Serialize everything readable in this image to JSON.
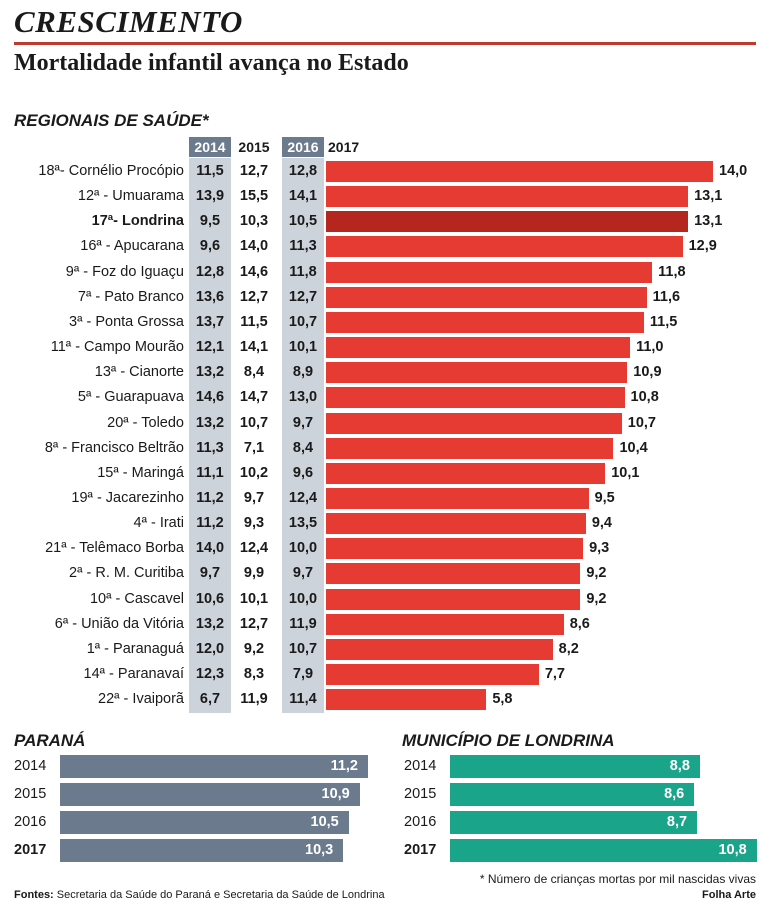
{
  "header": {
    "kicker": "CRESCIMENTO",
    "headline": "Mortalidade infantil avança no Estado"
  },
  "colors": {
    "bars": "#e63b32",
    "highlight": "#b5261e",
    "parana": "#6b7a8c",
    "londrina": "#1aa58a"
  },
  "chart_data": [
    {
      "type": "bar",
      "title": "REGIONAIS DE SAÚDE*",
      "columns": [
        "2014",
        "2015",
        "2016",
        "2017"
      ],
      "highlight": "17ª- Londrina",
      "rows": [
        {
          "label": "18ª- Cornélio Procópio",
          "v2014": "11,5",
          "v2015": "12,7",
          "v2016": "12,8",
          "v2017": 14.0,
          "label2017": "14,0"
        },
        {
          "label": "12ª - Umuarama",
          "v2014": "13,9",
          "v2015": "15,5",
          "v2016": "14,1",
          "v2017": 13.1,
          "label2017": "13,1"
        },
        {
          "label": "17ª- Londrina",
          "v2014": "9,5",
          "v2015": "10,3",
          "v2016": "10,5",
          "v2017": 13.1,
          "label2017": "13,1"
        },
        {
          "label": "16ª - Apucarana",
          "v2014": "9,6",
          "v2015": "14,0",
          "v2016": "11,3",
          "v2017": 12.9,
          "label2017": "12,9"
        },
        {
          "label": "9ª - Foz do Iguaçu",
          "v2014": "12,8",
          "v2015": "14,6",
          "v2016": "11,8",
          "v2017": 11.8,
          "label2017": "11,8"
        },
        {
          "label": "7ª - Pato Branco",
          "v2014": "13,6",
          "v2015": "12,7",
          "v2016": "12,7",
          "v2017": 11.6,
          "label2017": "11,6"
        },
        {
          "label": "3ª - Ponta Grossa",
          "v2014": "13,7",
          "v2015": "11,5",
          "v2016": "10,7",
          "v2017": 11.5,
          "label2017": "11,5"
        },
        {
          "label": "11ª - Campo Mourão",
          "v2014": "12,1",
          "v2015": "14,1",
          "v2016": "10,1",
          "v2017": 11.0,
          "label2017": "11,0"
        },
        {
          "label": "13ª - Cianorte",
          "v2014": "13,2",
          "v2015": "8,4",
          "v2016": "8,9",
          "v2017": 10.9,
          "label2017": "10,9"
        },
        {
          "label": "5ª - Guarapuava",
          "v2014": "14,6",
          "v2015": "14,7",
          "v2016": "13,0",
          "v2017": 10.8,
          "label2017": "10,8"
        },
        {
          "label": "20ª - Toledo",
          "v2014": "13,2",
          "v2015": "10,7",
          "v2016": "9,7",
          "v2017": 10.7,
          "label2017": "10,7"
        },
        {
          "label": "8ª - Francisco Beltrão",
          "v2014": "11,3",
          "v2015": "7,1",
          "v2016": "8,4",
          "v2017": 10.4,
          "label2017": "10,4"
        },
        {
          "label": "15ª - Maringá",
          "v2014": "11,1",
          "v2015": "10,2",
          "v2016": "9,6",
          "v2017": 10.1,
          "label2017": "10,1"
        },
        {
          "label": "19ª - Jacarezinho",
          "v2014": "11,2",
          "v2015": "9,7",
          "v2016": "12,4",
          "v2017": 9.5,
          "label2017": "9,5"
        },
        {
          "label": "4ª - Irati",
          "v2014": "11,2",
          "v2015": "9,3",
          "v2016": "13,5",
          "v2017": 9.4,
          "label2017": "9,4"
        },
        {
          "label": "21ª - Telêmaco Borba",
          "v2014": "14,0",
          "v2015": "12,4",
          "v2016": "10,0",
          "v2017": 9.3,
          "label2017": "9,3"
        },
        {
          "label": "2ª - R. M. Curitiba",
          "v2014": "9,7",
          "v2015": "9,9",
          "v2016": "9,7",
          "v2017": 9.2,
          "label2017": "9,2"
        },
        {
          "label": "10ª - Cascavel",
          "v2014": "10,6",
          "v2015": "10,1",
          "v2016": "10,0",
          "v2017": 9.2,
          "label2017": "9,2"
        },
        {
          "label": "6ª - União da Vitória",
          "v2014": "13,2",
          "v2015": "12,7",
          "v2016": "11,9",
          "v2017": 8.6,
          "label2017": "8,6"
        },
        {
          "label": "1ª - Paranaguá",
          "v2014": "12,0",
          "v2015": "9,2",
          "v2016": "10,7",
          "v2017": 8.2,
          "label2017": "8,2"
        },
        {
          "label": "14ª - Paranavaí",
          "v2014": "12,3",
          "v2015": "8,3",
          "v2016": "7,9",
          "v2017": 7.7,
          "label2017": "7,7"
        },
        {
          "label": "22ª - Ivaiporã",
          "v2014": "6,7",
          "v2015": "11,9",
          "v2016": "11,4",
          "v2017": 5.8,
          "label2017": "5,8"
        }
      ]
    },
    {
      "type": "bar",
      "title": "PARANÁ",
      "categories": [
        "2014",
        "2015",
        "2016",
        "2017"
      ],
      "values": [
        11.2,
        10.9,
        10.5,
        10.3
      ],
      "labels": [
        "11,2",
        "10,9",
        "10,5",
        "10,3"
      ]
    },
    {
      "type": "bar",
      "title": "MUNICÍPIO DE LONDRINA",
      "categories": [
        "2014",
        "2015",
        "2016",
        "2017"
      ],
      "values": [
        8.8,
        8.6,
        8.7,
        10.8
      ],
      "labels": [
        "8,8",
        "8,6",
        "8,7",
        "10,8"
      ]
    }
  ],
  "footer": {
    "footnote": "* Número de crianças mortas por mil nascidas vivas",
    "sources_label": "Fontes:",
    "sources_text": " Secretaria da Saúde do Paraná e Secretaria da Saúde de Londrina",
    "credit": "Folha Arte"
  }
}
